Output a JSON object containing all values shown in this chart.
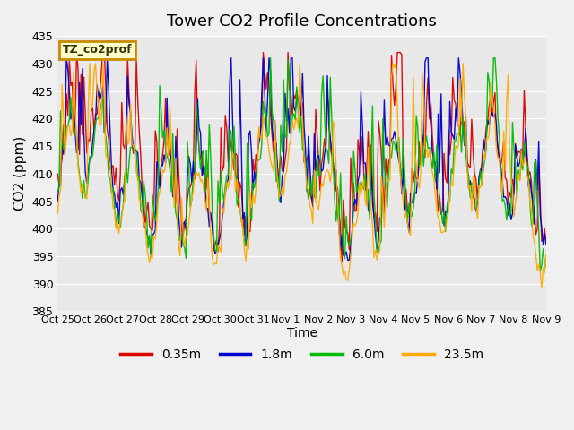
{
  "title": "Tower CO2 Profile Concentrations",
  "xlabel": "Time",
  "ylabel": "CO2 (ppm)",
  "ylim": [
    385,
    435
  ],
  "yticks": [
    385,
    390,
    395,
    400,
    405,
    410,
    415,
    420,
    425,
    430,
    435
  ],
  "plot_bg": "#e8e8e8",
  "fig_bg": "#f0f0f0",
  "series_colors": [
    "#dd0000",
    "#0000cc",
    "#00bb00",
    "#ffaa00"
  ],
  "series_lw": 1.0,
  "annotation_text": "TZ_co2prof",
  "annotation_bg": "#ffffcc",
  "annotation_edge": "#cc8800",
  "legend_labels": [
    "0.35m",
    "1.8m",
    "6.0m",
    "23.5m"
  ],
  "legend_colors": [
    "#dd0000",
    "#0000cc",
    "#00bb00",
    "#ffaa00"
  ],
  "xtick_labels": [
    "Oct 25",
    "Oct 26",
    "Oct 27",
    "Oct 28",
    "Oct 29",
    "Oct 30",
    "Oct 31",
    "Nov 1",
    "Nov 2",
    "Nov 3",
    "Nov 4",
    "Nov 5",
    "Nov 6",
    "Nov 7",
    "Nov 8",
    "Nov 9"
  ],
  "n_points": 336,
  "seed": 42
}
